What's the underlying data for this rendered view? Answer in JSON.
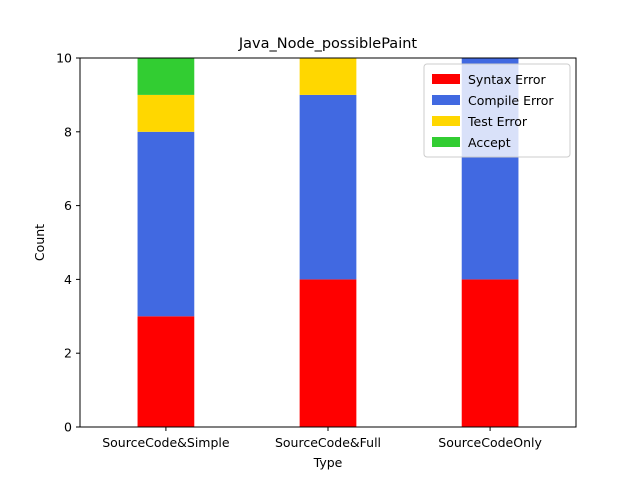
{
  "chart_data": {
    "type": "bar",
    "stacked": true,
    "title": "Java_Node_possiblePaint",
    "xlabel": "Type",
    "ylabel": "Count",
    "ylim": [
      0,
      10
    ],
    "yticks": [
      "0",
      "2",
      "4",
      "6",
      "8",
      "10"
    ],
    "categories": [
      "SourceCode&Simple",
      "SourceCode&Full",
      "SourceCodeOnly"
    ],
    "series": [
      {
        "name": "Syntax Error",
        "color": "#ff0000",
        "values": [
          3,
          4,
          4
        ]
      },
      {
        "name": "Compile Error",
        "color": "#4169e1",
        "values": [
          5,
          5,
          6
        ]
      },
      {
        "name": "Test Error",
        "color": "#ffd700",
        "values": [
          1,
          1,
          0
        ]
      },
      {
        "name": "Accept",
        "color": "#32cd32",
        "values": [
          1,
          0,
          0
        ]
      }
    ],
    "legend_position": "top-right",
    "grid": false
  }
}
